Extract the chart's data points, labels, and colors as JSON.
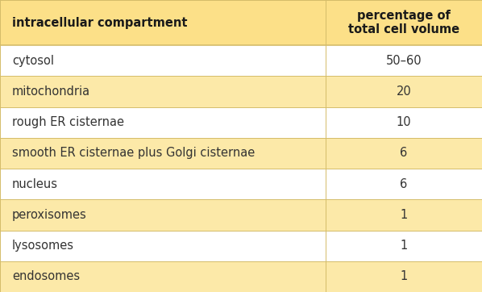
{
  "col1_header": "intracellular compartment",
  "col2_header": "percentage of\ntotal cell volume",
  "rows": [
    [
      "cytosol",
      "50–60"
    ],
    [
      "mitochondria",
      "20"
    ],
    [
      "rough ER cisternae",
      "10"
    ],
    [
      "smooth ER cisternae plus Golgi cisternae",
      "6"
    ],
    [
      "nucleus",
      "6"
    ],
    [
      "peroxisomes",
      "1"
    ],
    [
      "lysosomes",
      "1"
    ],
    [
      "endosomes",
      "1"
    ]
  ],
  "header_bg": "#fce088",
  "row_bg_yellow": "#fce9a8",
  "row_bg_white": "#ffffff",
  "outer_bg": "#fce088",
  "line_color": "#d4bc6a",
  "header_text_color": "#1a1a1a",
  "data_text_color": "#333333",
  "font_size": 10.5,
  "header_font_size": 10.5,
  "col_split": 0.675,
  "fig_width": 5.98,
  "fig_height": 3.62,
  "dpi": 100
}
